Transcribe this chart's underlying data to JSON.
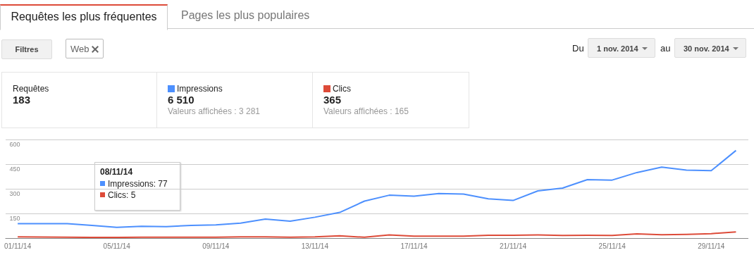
{
  "chart_data": {
    "type": "line",
    "categories": [
      "01/11/14",
      null,
      null,
      null,
      "05/11/14",
      null,
      null,
      null,
      "09/11/14",
      null,
      null,
      null,
      "13/11/14",
      null,
      null,
      null,
      "17/11/14",
      null,
      null,
      null,
      "21/11/14",
      null,
      null,
      null,
      "25/11/14",
      null,
      null,
      null,
      "29/11/14",
      null
    ],
    "series": [
      {
        "name": "Impressions",
        "color": "#4d90fe",
        "values": [
          88,
          88,
          88,
          77,
          65,
          72,
          70,
          77,
          80,
          91,
          116,
          103,
          127,
          156,
          225,
          261,
          255,
          271,
          268,
          239,
          229,
          287,
          304,
          356,
          353,
          399,
          432,
          414,
          410,
          533
        ]
      },
      {
        "name": "Clics",
        "color": "#dd4b39",
        "values": [
          7,
          6,
          5,
          4,
          4,
          5,
          5,
          5,
          5,
          7,
          7,
          5,
          7,
          14,
          5,
          19,
          12,
          12,
          12,
          17,
          17,
          19,
          16,
          17,
          16,
          26,
          20,
          23,
          27,
          38
        ]
      }
    ],
    "ylim": [
      0,
      600
    ],
    "yticks": [
      {
        "value": 0,
        "label": null
      },
      150,
      300,
      450,
      600
    ],
    "grid": "y",
    "legend": "top left",
    "marker": "none",
    "line_style": "solid",
    "annotations": [
      "Requêtes les plus fréquentes",
      "Pages les plus populaires",
      "Filtres",
      "Web",
      "Du",
      "1 nov. 2014",
      "au",
      "30 nov. 2014",
      "Requêtes",
      "183",
      "6 510",
      "Valeurs affichées : 3 281",
      "365",
      "Valeurs affichées : 165",
      "08/11/14",
      "Impressions: 77",
      "Clics: 5"
    ]
  }
}
